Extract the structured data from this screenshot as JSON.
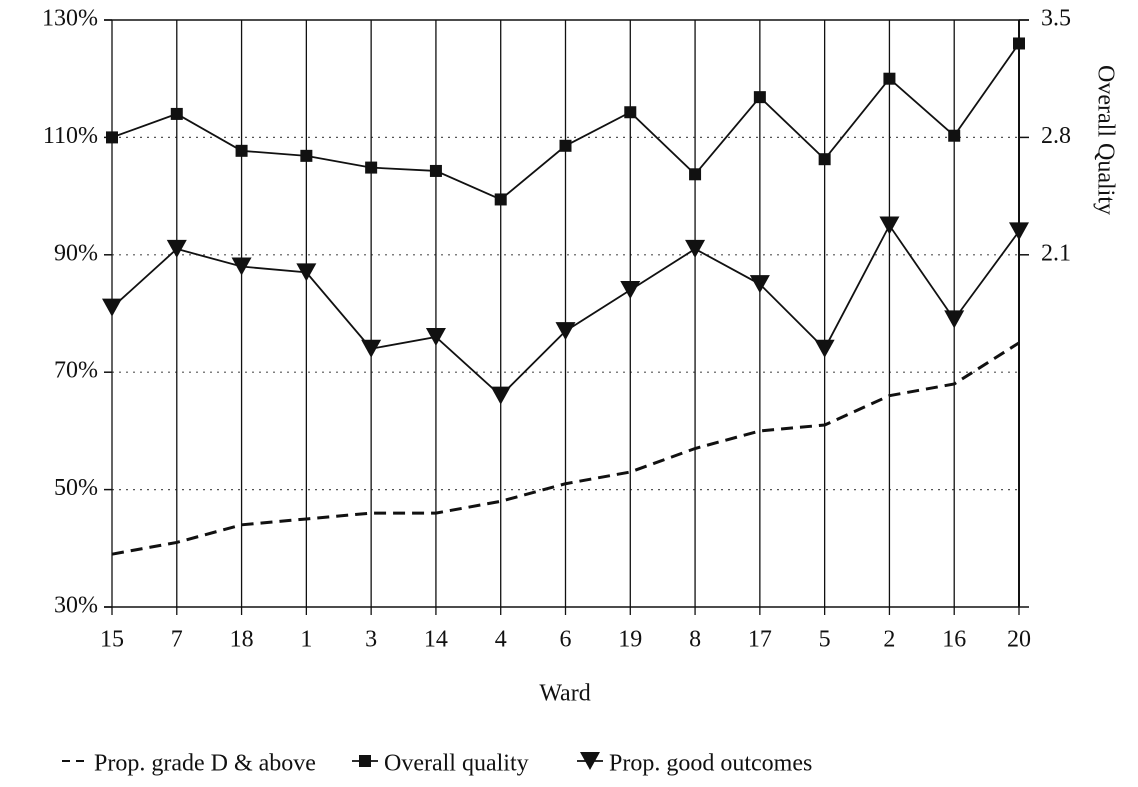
{
  "chart_data": {
    "type": "line",
    "x_label": "Ward",
    "y2_label": "Overall Quality",
    "categories": [
      "15",
      "7",
      "18",
      "1",
      "3",
      "14",
      "4",
      "6",
      "19",
      "8",
      "17",
      "5",
      "2",
      "16",
      "20"
    ],
    "series": [
      {
        "name": "Prop. grade D & above",
        "color": "#111111",
        "dashed": true,
        "marker": "none",
        "values": [
          39,
          41,
          44,
          45,
          46,
          46,
          48,
          51,
          53,
          57,
          60,
          61,
          66,
          68,
          75
        ]
      },
      {
        "name": "Overall quality",
        "color": "#111111",
        "dashed": false,
        "marker": "square",
        "axis": "y2",
        "values": [
          2.8,
          2.94,
          2.72,
          2.69,
          2.62,
          2.6,
          2.43,
          2.75,
          2.95,
          2.58,
          3.04,
          2.67,
          3.15,
          2.81,
          3.36
        ]
      },
      {
        "name": "Prop. good outcomes",
        "color": "#111111",
        "dashed": false,
        "marker": "triangle-down",
        "values": [
          81,
          91,
          88,
          87,
          74,
          76,
          66,
          77,
          84,
          91,
          85,
          74,
          95,
          79,
          94
        ]
      }
    ],
    "ylim": [
      30,
      130
    ],
    "yticks": [
      {
        "value": 30,
        "label": "30%"
      },
      {
        "value": 50,
        "label": "50%"
      },
      {
        "value": 70,
        "label": "70%"
      },
      {
        "value": 90,
        "label": "90%"
      },
      {
        "value": 110,
        "label": "110%"
      },
      {
        "value": 130,
        "label": "130%"
      }
    ],
    "y2lim": [
      0,
      3.5
    ],
    "y2ticks": [
      2.1,
      2.8,
      3.5
    ],
    "grid": true,
    "legend": "bottom"
  }
}
